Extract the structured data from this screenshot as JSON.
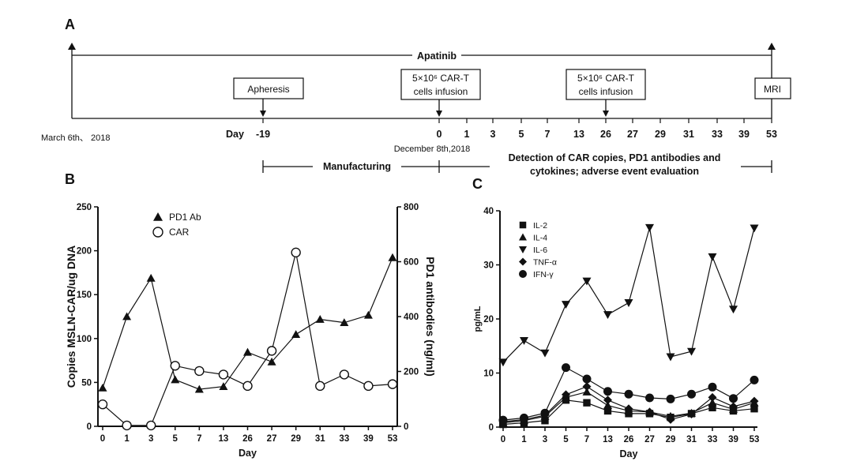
{
  "panel_a": {
    "letter": "A",
    "drug_label": "Apatinib",
    "start_date": "March 6th、 2018",
    "day_label": "Day",
    "days": [
      "-19",
      "0",
      "1",
      "3",
      "5",
      "7",
      "13",
      "26",
      "27",
      "29",
      "31",
      "33",
      "39",
      "53"
    ],
    "boxes": {
      "apheresis": "Apheresis",
      "infusion1_line1": "5×10⁶ CAR-T",
      "infusion1_line2": "cells infusion",
      "infusion2_line1": "5×10⁶ CAR-T",
      "infusion2_line2": "cells infusion",
      "mri": "MRI"
    },
    "infusion_date": "December 8th,2018",
    "manufacturing_label": "Manufacturing",
    "detection_line1": "Detection of CAR copies, PD1 antibodies and",
    "detection_line2": "cytokines; adverse event evaluation"
  },
  "chart_data": [
    {
      "panel": "B",
      "type": "line",
      "categories": [
        "0",
        "1",
        "3",
        "5",
        "7",
        "13",
        "26",
        "27",
        "29",
        "31",
        "33",
        "39",
        "53"
      ],
      "xlabel": "Day",
      "ylabel": "Copies MSLN-CAR/ug DNA",
      "ylabel_right": "PD1 antibodies (ng/ml)",
      "ylim": [
        0,
        250
      ],
      "yticks": [
        "0",
        "50",
        "100",
        "150",
        "200",
        "250"
      ],
      "ylim_right": [
        0,
        800
      ],
      "yticks_right": [
        "0",
        "200",
        "400",
        "600",
        "800"
      ],
      "legend_position": "top-left",
      "series": [
        {
          "name": "PD1 Ab",
          "axis": "right",
          "marker": "triangle-filled",
          "values": [
            140,
            400,
            540,
            170,
            135,
            145,
            270,
            235,
            335,
            390,
            378,
            405,
            615
          ]
        },
        {
          "name": "CAR",
          "axis": "left",
          "marker": "circle-open",
          "values": [
            25,
            1,
            1,
            69,
            63,
            59,
            46,
            86,
            198,
            46,
            59,
            46,
            48
          ]
        }
      ]
    },
    {
      "panel": "C",
      "type": "line",
      "categories": [
        "0",
        "1",
        "3",
        "5",
        "7",
        "13",
        "26",
        "27",
        "29",
        "31",
        "33",
        "39",
        "53"
      ],
      "xlabel": "Day",
      "ylabel": "pg/mL",
      "ylim": [
        0,
        40
      ],
      "yticks": [
        "0",
        "10",
        "20",
        "30",
        "40"
      ],
      "legend_position": "top-left",
      "series": [
        {
          "name": "IL-2",
          "marker": "square",
          "values": [
            0.5,
            0.8,
            1.2,
            5.0,
            4.5,
            3.0,
            2.5,
            2.5,
            1.8,
            2.5,
            3.6,
            3.0,
            3.4
          ]
        },
        {
          "name": "IL-4",
          "marker": "triangle-up",
          "values": [
            0.8,
            1.2,
            2.0,
            5.5,
            6.5,
            4.0,
            3.0,
            2.8,
            2.0,
            2.6,
            4.5,
            3.3,
            4.5
          ]
        },
        {
          "name": "IL-6",
          "marker": "triangle-down",
          "values": [
            12.0,
            16.0,
            13.7,
            22.7,
            27.0,
            20.8,
            23.0,
            36.9,
            13.0,
            14.0,
            31.5,
            21.8,
            36.8
          ]
        },
        {
          "name": "TNF-α",
          "marker": "diamond",
          "values": [
            1.0,
            1.4,
            2.2,
            6.0,
            7.5,
            5.0,
            3.4,
            2.8,
            1.4,
            2.4,
            5.5,
            3.8,
            4.8
          ]
        },
        {
          "name": "IFN-γ",
          "marker": "circle-filled",
          "values": [
            1.3,
            1.7,
            2.6,
            11.0,
            8.9,
            6.6,
            6.1,
            5.4,
            5.2,
            6.1,
            7.4,
            5.3,
            8.7
          ]
        }
      ]
    }
  ]
}
